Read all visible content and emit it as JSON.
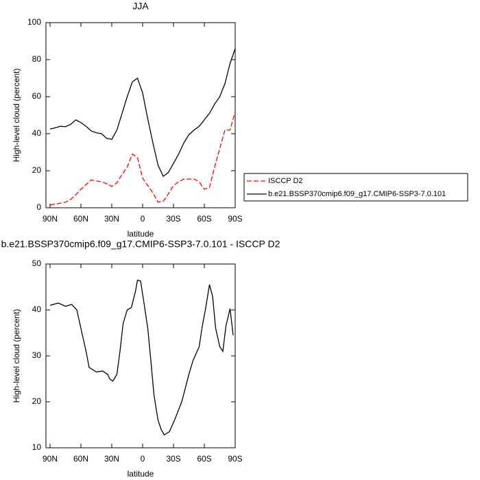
{
  "chart_data": [
    {
      "type": "line",
      "title": "JJA",
      "x_label": "latitude",
      "y_label": "High-level cloud (percent)",
      "x": [
        90,
        85,
        80,
        75,
        70,
        65,
        60,
        55,
        50,
        45,
        40,
        35,
        30,
        25,
        20,
        15,
        10,
        5,
        0,
        -5,
        -10,
        -15,
        -20,
        -25,
        -30,
        -35,
        -40,
        -45,
        -50,
        -55,
        -60,
        -65,
        -70,
        -75,
        -80,
        -85,
        -90
      ],
      "series": [
        {
          "name": "ISCCP D2",
          "color": "#ff0000",
          "line_style": "dashed",
          "values": [
            1.5,
            2,
            2.5,
            3,
            4.5,
            7,
            10,
            12.5,
            15,
            14.5,
            14,
            13,
            11.5,
            13.5,
            18,
            22,
            29,
            27,
            16,
            12,
            8,
            3,
            3.5,
            7.5,
            12,
            14,
            15.5,
            15.5,
            15.5,
            14,
            10,
            11,
            22,
            32,
            42,
            42,
            52
          ]
        },
        {
          "name": "b.e21.BSSP370cmip6.f09_g17.CMIP6-SSP3-7.0.101",
          "color": "#000000",
          "line_style": "solid",
          "values": [
            42.5,
            43.2,
            44,
            43.8,
            45,
            47.5,
            46,
            44,
            41.5,
            40.5,
            40,
            37.5,
            37,
            42,
            51,
            60,
            68,
            70,
            62,
            48,
            35,
            23,
            17,
            19,
            24,
            29,
            35,
            39.5,
            42,
            44,
            47.5,
            51,
            56,
            60,
            67,
            78,
            86
          ]
        }
      ],
      "xlim": [
        94,
        -90
      ],
      "xticks": [
        {
          "value": 90,
          "label": "90N"
        },
        {
          "value": 60,
          "label": "60N"
        },
        {
          "value": 30,
          "label": "30N"
        },
        0,
        {
          "value": -30,
          "label": "30S"
        },
        {
          "value": -60,
          "label": "60S"
        },
        {
          "value": -90,
          "label": "90S"
        }
      ],
      "ylim": [
        0,
        100
      ],
      "yticks": [
        0,
        20,
        40,
        60,
        80,
        100
      ],
      "legend": "outside-right"
    },
    {
      "type": "line",
      "title": "b.e21.BSSP370cmip6.f09_g17.CMIP6-SSP3-7.0.101 - ISCCP D2",
      "x_label": "latitude",
      "y_label": "High-level cloud (percent)",
      "x": [
        90,
        82,
        75,
        69,
        64,
        59,
        55,
        52,
        45,
        39,
        34,
        32,
        29,
        25,
        22,
        19,
        15,
        11,
        7,
        5,
        2,
        -1,
        -5,
        -8,
        -11,
        -15,
        -18,
        -21,
        -26,
        -31,
        -38,
        -45,
        -49,
        -55,
        -58,
        -61,
        -65,
        -68,
        -71,
        -75,
        -78,
        -81,
        -85,
        -88
      ],
      "series": [
        {
          "color": "#000000",
          "line_style": "solid",
          "values": [
            41,
            41.5,
            40.8,
            41.2,
            40,
            35,
            31,
            27.5,
            26.5,
            26.7,
            26,
            25,
            24.5,
            26,
            31,
            37,
            40,
            40.5,
            44,
            46.5,
            46.3,
            42,
            36,
            29,
            21.5,
            16,
            14,
            12.8,
            13.5,
            16,
            20,
            26,
            29,
            32,
            36.5,
            40,
            45.5,
            43,
            36,
            32,
            31,
            36.5,
            40.3,
            34.5
          ]
        }
      ],
      "xlim": [
        94,
        -90
      ],
      "xticks": [
        {
          "value": 90,
          "label": "90N"
        },
        {
          "value": 60,
          "label": "60N"
        },
        {
          "value": 30,
          "label": "30N"
        },
        0,
        {
          "value": -30,
          "label": "30S"
        },
        {
          "value": -60,
          "label": "60S"
        },
        {
          "value": -90,
          "label": "90S"
        }
      ],
      "ylim": [
        10,
        50
      ],
      "yticks": [
        10,
        20,
        30,
        40,
        50
      ]
    }
  ]
}
